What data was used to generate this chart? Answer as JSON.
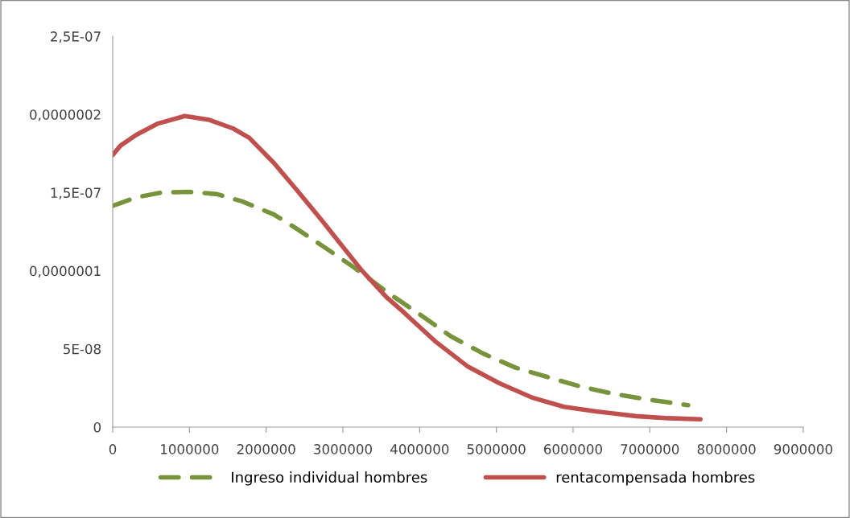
{
  "chart_data": {
    "type": "line",
    "legend": "bottom",
    "grid": false,
    "xlim": [
      0,
      9000000
    ],
    "xticks": [
      0,
      1000000,
      2000000,
      3000000,
      4000000,
      5000000,
      6000000,
      7000000,
      8000000,
      9000000
    ],
    "ylim": [
      0,
      2.5e-07
    ],
    "yticks": [
      {
        "value": 0,
        "label": "0"
      },
      {
        "value": 5e-08,
        "label": "5E-08"
      },
      {
        "value": 1e-07,
        "label": "0,0000001"
      },
      {
        "value": 1.5e-07,
        "label": "1,5E-07"
      },
      {
        "value": 2e-07,
        "label": "0,0000002"
      },
      {
        "value": 2.5e-07,
        "label": "2,5E-07"
      }
    ],
    "series": [
      {
        "name": "Ingreso individual hombres",
        "color": "#77933c",
        "line_style": "dashed",
        "x": [
          0,
          310000,
          630000,
          1000000,
          1360000,
          1680000,
          2100000,
          2410000,
          2730000,
          3150000,
          3570000,
          3990000,
          4410000,
          4830000,
          5250000,
          5670000,
          6090000,
          6510000,
          6930000,
          7500000
        ],
        "values": [
          1.415e-07,
          1.47e-07,
          1.5e-07,
          1.505e-07,
          1.49e-07,
          1.445e-07,
          1.36e-07,
          1.265e-07,
          1.16e-07,
          1.02e-07,
          8.65e-08,
          7.25e-08,
          5.8e-08,
          4.7e-08,
          3.8e-08,
          3.2e-08,
          2.6e-08,
          2.15e-08,
          1.8e-08,
          1.4e-08
        ]
      },
      {
        "name": "rentacompensada hombres",
        "color": "#c0504d",
        "line_style": "solid",
        "x": [
          0,
          100000,
          310000,
          580000,
          940000,
          1260000,
          1570000,
          1780000,
          2100000,
          2410000,
          2730000,
          2940000,
          3250000,
          3570000,
          3780000,
          4200000,
          4620000,
          5040000,
          5460000,
          5880000,
          6300000,
          6820000,
          7240000,
          7660000
        ],
        "values": [
          1.74e-07,
          1.8e-07,
          1.87e-07,
          1.94e-07,
          1.99e-07,
          1.965e-07,
          1.91e-07,
          1.85e-07,
          1.69e-07,
          1.51e-07,
          1.32e-07,
          1.19e-07,
          1e-07,
          8.3e-08,
          7.4e-08,
          5.5e-08,
          3.9e-08,
          2.8e-08,
          1.9e-08,
          1.3e-08,
          1e-08,
          7e-09,
          5.7e-09,
          5e-09
        ]
      }
    ]
  }
}
